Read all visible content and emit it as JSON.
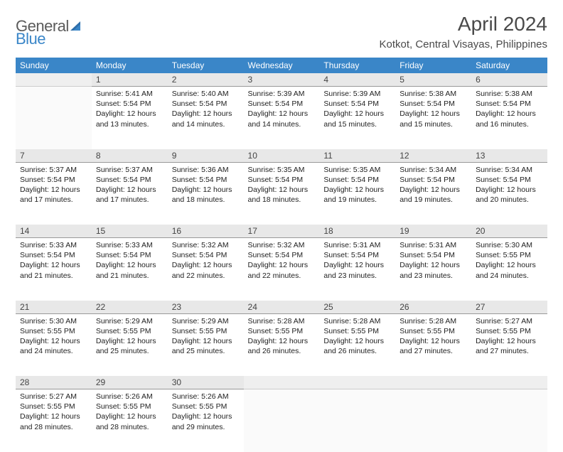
{
  "logo": {
    "text1": "General",
    "text2": "Blue"
  },
  "title": "April 2024",
  "location": "Kotkot, Central Visayas, Philippines",
  "colors": {
    "header_bg": "#3a86c8",
    "header_fg": "#ffffff",
    "daynum_bg": "#e8e8e8",
    "logo_gray": "#5b5b5b",
    "logo_blue": "#3a86c8"
  },
  "weekdays": [
    "Sunday",
    "Monday",
    "Tuesday",
    "Wednesday",
    "Thursday",
    "Friday",
    "Saturday"
  ],
  "weeks": [
    {
      "nums": [
        "",
        "1",
        "2",
        "3",
        "4",
        "5",
        "6"
      ],
      "cells": [
        null,
        {
          "sunrise": "5:41 AM",
          "sunset": "5:54 PM",
          "daylight": "12 hours and 13 minutes."
        },
        {
          "sunrise": "5:40 AM",
          "sunset": "5:54 PM",
          "daylight": "12 hours and 14 minutes."
        },
        {
          "sunrise": "5:39 AM",
          "sunset": "5:54 PM",
          "daylight": "12 hours and 14 minutes."
        },
        {
          "sunrise": "5:39 AM",
          "sunset": "5:54 PM",
          "daylight": "12 hours and 15 minutes."
        },
        {
          "sunrise": "5:38 AM",
          "sunset": "5:54 PM",
          "daylight": "12 hours and 15 minutes."
        },
        {
          "sunrise": "5:38 AM",
          "sunset": "5:54 PM",
          "daylight": "12 hours and 16 minutes."
        }
      ]
    },
    {
      "nums": [
        "7",
        "8",
        "9",
        "10",
        "11",
        "12",
        "13"
      ],
      "cells": [
        {
          "sunrise": "5:37 AM",
          "sunset": "5:54 PM",
          "daylight": "12 hours and 17 minutes."
        },
        {
          "sunrise": "5:37 AM",
          "sunset": "5:54 PM",
          "daylight": "12 hours and 17 minutes."
        },
        {
          "sunrise": "5:36 AM",
          "sunset": "5:54 PM",
          "daylight": "12 hours and 18 minutes."
        },
        {
          "sunrise": "5:35 AM",
          "sunset": "5:54 PM",
          "daylight": "12 hours and 18 minutes."
        },
        {
          "sunrise": "5:35 AM",
          "sunset": "5:54 PM",
          "daylight": "12 hours and 19 minutes."
        },
        {
          "sunrise": "5:34 AM",
          "sunset": "5:54 PM",
          "daylight": "12 hours and 19 minutes."
        },
        {
          "sunrise": "5:34 AM",
          "sunset": "5:54 PM",
          "daylight": "12 hours and 20 minutes."
        }
      ]
    },
    {
      "nums": [
        "14",
        "15",
        "16",
        "17",
        "18",
        "19",
        "20"
      ],
      "cells": [
        {
          "sunrise": "5:33 AM",
          "sunset": "5:54 PM",
          "daylight": "12 hours and 21 minutes."
        },
        {
          "sunrise": "5:33 AM",
          "sunset": "5:54 PM",
          "daylight": "12 hours and 21 minutes."
        },
        {
          "sunrise": "5:32 AM",
          "sunset": "5:54 PM",
          "daylight": "12 hours and 22 minutes."
        },
        {
          "sunrise": "5:32 AM",
          "sunset": "5:54 PM",
          "daylight": "12 hours and 22 minutes."
        },
        {
          "sunrise": "5:31 AM",
          "sunset": "5:54 PM",
          "daylight": "12 hours and 23 minutes."
        },
        {
          "sunrise": "5:31 AM",
          "sunset": "5:54 PM",
          "daylight": "12 hours and 23 minutes."
        },
        {
          "sunrise": "5:30 AM",
          "sunset": "5:55 PM",
          "daylight": "12 hours and 24 minutes."
        }
      ]
    },
    {
      "nums": [
        "21",
        "22",
        "23",
        "24",
        "25",
        "26",
        "27"
      ],
      "cells": [
        {
          "sunrise": "5:30 AM",
          "sunset": "5:55 PM",
          "daylight": "12 hours and 24 minutes."
        },
        {
          "sunrise": "5:29 AM",
          "sunset": "5:55 PM",
          "daylight": "12 hours and 25 minutes."
        },
        {
          "sunrise": "5:29 AM",
          "sunset": "5:55 PM",
          "daylight": "12 hours and 25 minutes."
        },
        {
          "sunrise": "5:28 AM",
          "sunset": "5:55 PM",
          "daylight": "12 hours and 26 minutes."
        },
        {
          "sunrise": "5:28 AM",
          "sunset": "5:55 PM",
          "daylight": "12 hours and 26 minutes."
        },
        {
          "sunrise": "5:28 AM",
          "sunset": "5:55 PM",
          "daylight": "12 hours and 27 minutes."
        },
        {
          "sunrise": "5:27 AM",
          "sunset": "5:55 PM",
          "daylight": "12 hours and 27 minutes."
        }
      ]
    },
    {
      "nums": [
        "28",
        "29",
        "30",
        "",
        "",
        "",
        ""
      ],
      "cells": [
        {
          "sunrise": "5:27 AM",
          "sunset": "5:55 PM",
          "daylight": "12 hours and 28 minutes."
        },
        {
          "sunrise": "5:26 AM",
          "sunset": "5:55 PM",
          "daylight": "12 hours and 28 minutes."
        },
        {
          "sunrise": "5:26 AM",
          "sunset": "5:55 PM",
          "daylight": "12 hours and 29 minutes."
        },
        null,
        null,
        null,
        null
      ]
    }
  ],
  "labels": {
    "sunrise": "Sunrise:",
    "sunset": "Sunset:",
    "daylight": "Daylight:"
  }
}
